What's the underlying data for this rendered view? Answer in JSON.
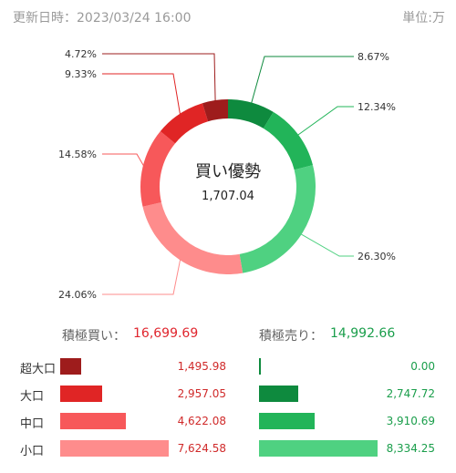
{
  "header": {
    "updated": "更新日時：2023/03/24 16:00",
    "unit": "単位:万"
  },
  "chart_data": {
    "type": "pie",
    "center": {
      "title": "買い優勢",
      "value": "1,707.04"
    },
    "slices": [
      {
        "label": "8.67%",
        "value": 8.67,
        "color": "#0e8a3e"
      },
      {
        "label": "12.34%",
        "value": 12.34,
        "color": "#22b459"
      },
      {
        "label": "26.30%",
        "value": 26.3,
        "color": "#4fd181"
      },
      {
        "label": "24.06%",
        "value": 24.06,
        "color": "#fe8c8c"
      },
      {
        "label": "14.58%",
        "value": 14.58,
        "color": "#f7585a"
      },
      {
        "label": "9.33%",
        "value": 9.33,
        "color": "#e02525"
      },
      {
        "label": "4.72%",
        "value": 4.72,
        "color": "#9e1c1c"
      }
    ]
  },
  "summary": {
    "buy_label": "積極買い：",
    "buy_total": "16,699.69",
    "sell_label": "積極売り：",
    "sell_total": "14,992.66"
  },
  "rows": [
    {
      "label": "超大口",
      "buy": "1,495.98",
      "buy_value": 1495.98,
      "sell": "0.00",
      "sell_value": 0.0,
      "buy_color": "#9e1c1c",
      "sell_color": "#0e8a3e"
    },
    {
      "label": "大口",
      "buy": "2,957.05",
      "buy_value": 2957.05,
      "sell": "2,747.72",
      "sell_value": 2747.72,
      "buy_color": "#e02525",
      "sell_color": "#0e8a3e"
    },
    {
      "label": "中口",
      "buy": "4,622.08",
      "buy_value": 4622.08,
      "sell": "3,910.69",
      "sell_value": 3910.69,
      "buy_color": "#f7585a",
      "sell_color": "#22b459"
    },
    {
      "label": "小口",
      "buy": "7,624.58",
      "buy_value": 7624.58,
      "sell": "8,334.25",
      "sell_value": 8334.25,
      "buy_color": "#fe8c8c",
      "sell_color": "#4fd181"
    }
  ]
}
